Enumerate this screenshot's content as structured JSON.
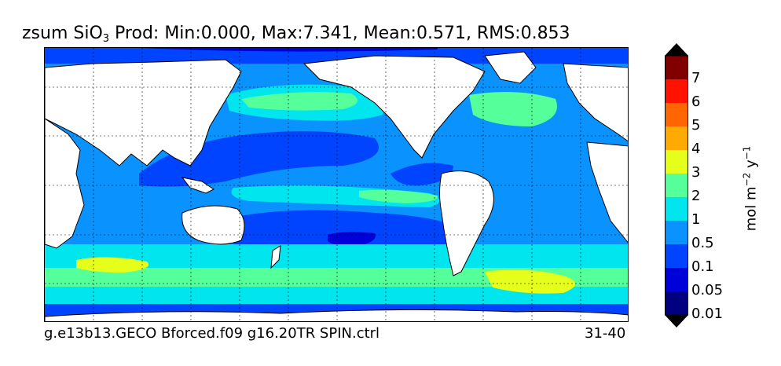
{
  "title": {
    "variable": "zsum SiO",
    "subscript": "3",
    "stats": " Prod: Min:0.000, Max:7.341, Mean:0.571, RMS:0.853"
  },
  "footer": {
    "case_name": "g.e13b13.GECO Bforced.f09 g16.20TR SPIN.ctrl",
    "years": "31-40"
  },
  "colorbar": {
    "unit_main": "mol m",
    "unit_exp1": "−2",
    "unit_y": " y",
    "unit_exp2": "−1",
    "levels": [
      "7",
      "6",
      "5",
      "4",
      "3",
      "2",
      "1",
      "0.5",
      "0.1",
      "0.05",
      "0.01"
    ],
    "colors": [
      "#800000",
      "#ff1200",
      "#ff6500",
      "#ffaa00",
      "#e5ff1a",
      "#55ff99",
      "#00e5ee",
      "#0a93ff",
      "#0044ff",
      "#0000d9",
      "#000080"
    ],
    "over_color": "#000000",
    "under_color": "#000000"
  },
  "map_colors": {
    "land": "#ffffff",
    "coastline": "#000000",
    "grid": "#000000"
  }
}
